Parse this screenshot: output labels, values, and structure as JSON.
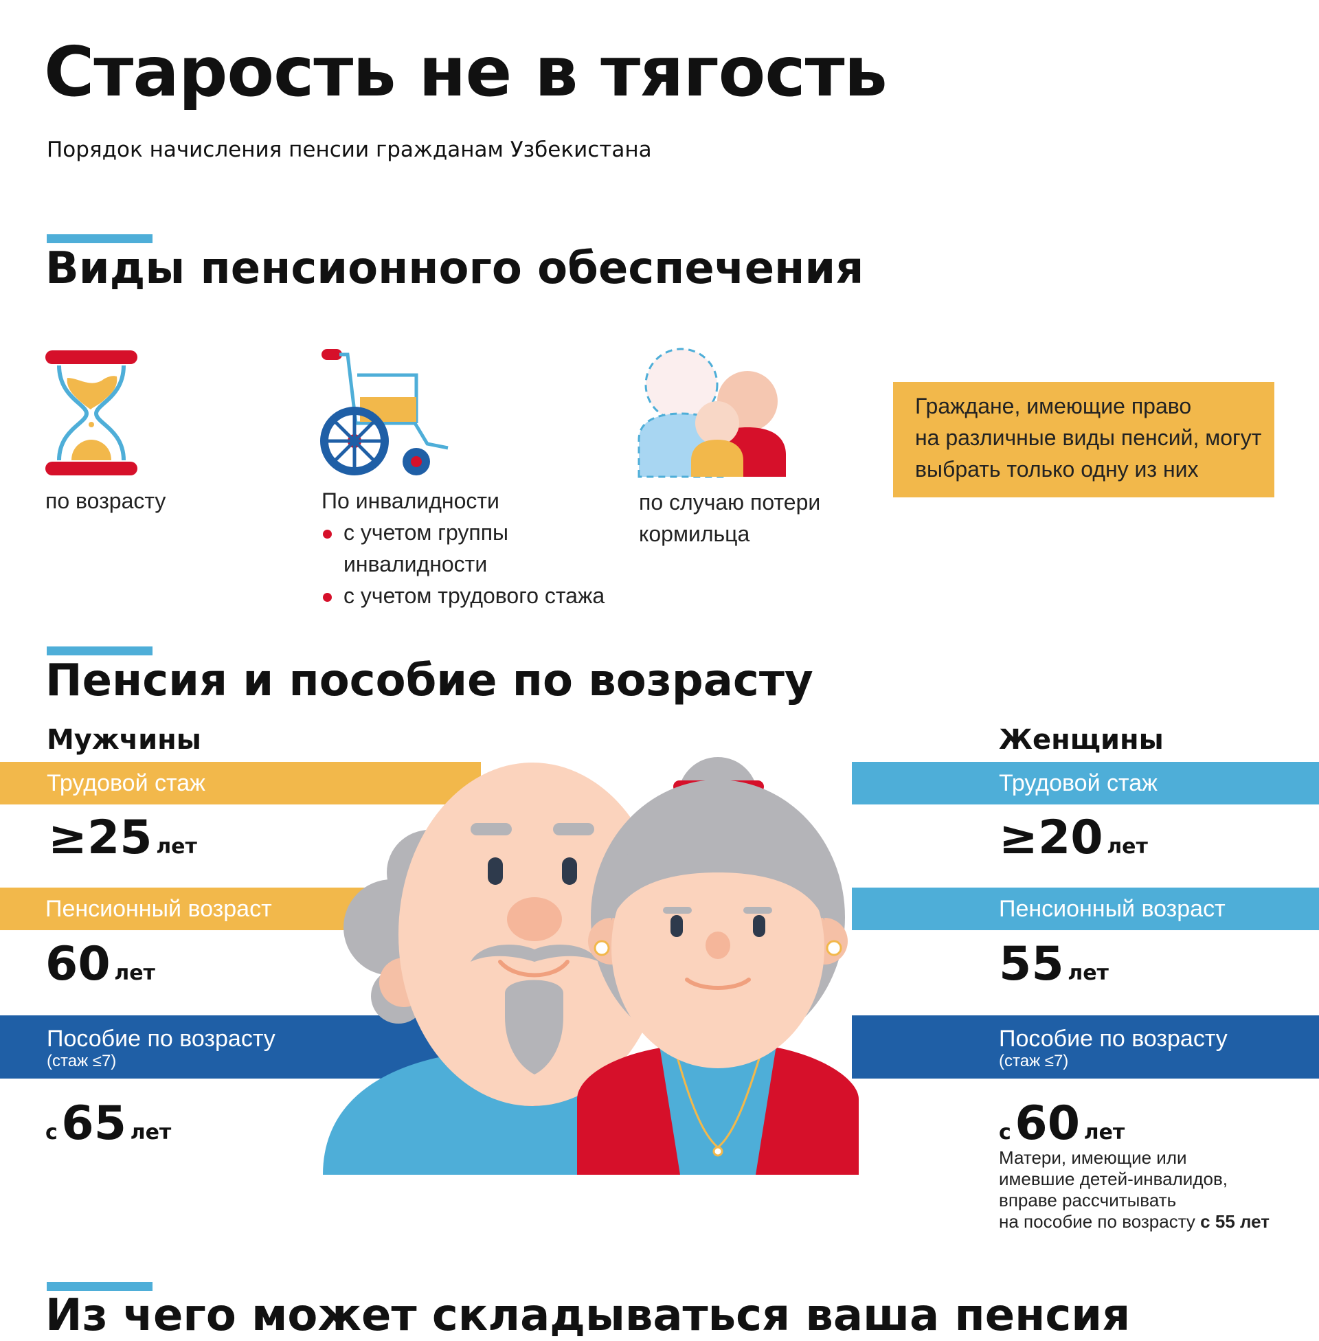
{
  "header": {
    "title": "Старость не в тягость",
    "subtitle": "Порядок начисления пенсии гражданам Узбекистана"
  },
  "types_section": {
    "heading": "Виды пенсионного обеспечения",
    "age": {
      "label": "по возрасту",
      "icon": "hourglass-icon"
    },
    "disability": {
      "label": "По инвалидности",
      "icon": "wheelchair-icon",
      "bullets": [
        "с учетом группы инвалидности",
        "с учетом трудового стажа"
      ]
    },
    "survivor": {
      "label_line1": "по случаю потери",
      "label_line2": "кормильца",
      "icon": "family-icon"
    },
    "note": {
      "line1": "Граждане, имеющие право",
      "line2": "на различные виды пенсий, могут",
      "line3": "выбрать только одну из них"
    }
  },
  "age_section": {
    "heading": "Пенсия и пособие по возрасту",
    "men": {
      "title": "Мужчины",
      "experience_label": "Трудовой стаж",
      "experience_prefix": "≥",
      "experience_value": "25",
      "experience_unit": "лет",
      "retirement_label": "Пенсионный возраст",
      "retirement_value": "60",
      "retirement_unit": "лет",
      "allowance_label": "Пособие по возрасту",
      "allowance_sub": "(стаж ≤7)",
      "allowance_prefix": "с",
      "allowance_value": "65",
      "allowance_unit": "лет"
    },
    "women": {
      "title": "Женщины",
      "experience_label": "Трудовой стаж",
      "experience_prefix": "≥",
      "experience_value": "20",
      "experience_unit": "лет",
      "retirement_label": "Пенсионный возраст",
      "retirement_value": "55",
      "retirement_unit": "лет",
      "allowance_label": "Пособие по возрасту",
      "allowance_sub": "(стаж ≤7)",
      "allowance_prefix": "с",
      "allowance_value": "60",
      "allowance_unit": "лет",
      "note_line1": "Матери, имеющие или",
      "note_line2": "имевшие детей-инвалидов,",
      "note_line3": "вправе рассчитывать",
      "note_line4": "на пособие по возрасту",
      "note_bold": "с 55 лет"
    }
  },
  "next_section": {
    "heading": "Из чего может складываться ваша пенсия"
  },
  "colors": {
    "yellow": "#f2b84b",
    "light_blue": "#4eaed8",
    "dark_blue": "#1f5fa6",
    "red": "#d6102a",
    "skin": "#fbd3bd",
    "hair": "#b4b4b8"
  }
}
